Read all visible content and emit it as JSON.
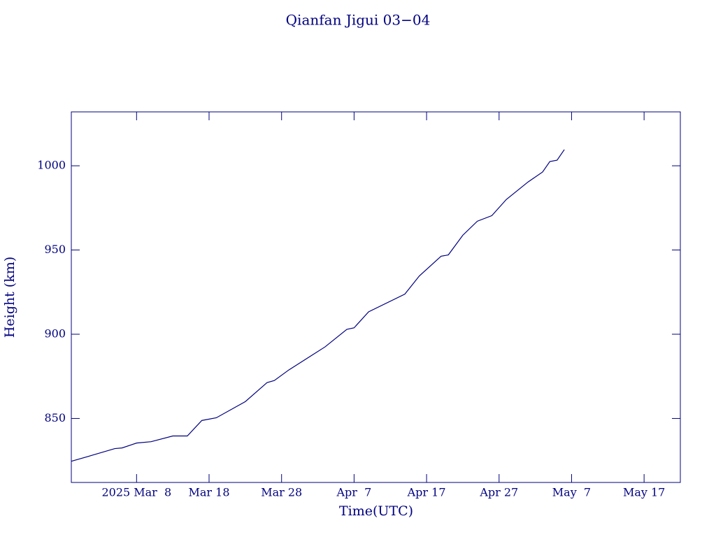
{
  "chart_data": {
    "type": "line",
    "title": "Qianfan Jigui 03−04",
    "x_label": "Time(UTC)",
    "y_label": "Height (km)",
    "x": [
      "2025-02-27",
      "2025-03-02",
      "2025-03-05",
      "2025-03-06",
      "2025-03-08",
      "2025-03-10",
      "2025-03-13",
      "2025-03-15",
      "2025-03-17",
      "2025-03-19",
      "2025-03-23",
      "2025-03-26",
      "2025-03-27",
      "2025-03-29",
      "2025-04-03",
      "2025-04-06",
      "2025-04-07",
      "2025-04-09",
      "2025-04-14",
      "2025-04-16",
      "2025-04-19",
      "2025-04-20",
      "2025-04-22",
      "2025-04-24",
      "2025-04-26",
      "2025-04-28",
      "2025-05-01",
      "2025-05-03",
      "2025-05-04",
      "2025-05-05",
      "2025-05-06"
    ],
    "series": [
      {
        "name": "Height",
        "color": "#000080",
        "values": [
          824.6,
          828.3,
          832.1,
          832.5,
          835.4,
          836.2,
          839.6,
          839.6,
          848.8,
          850.4,
          860,
          871.3,
          872.5,
          878.8,
          892.5,
          902.9,
          903.8,
          913.3,
          923.8,
          934.6,
          946.3,
          947.1,
          958.8,
          967.1,
          970.4,
          980,
          990.4,
          996.3,
          1002.5,
          1003.3,
          1009.6
        ]
      }
    ],
    "xlim": [
      "2025-02-27",
      "2025-05-22"
    ],
    "xticks": [
      {
        "value": "2025-03-08",
        "label": "2025 Mar  8"
      },
      {
        "value": "2025-03-18",
        "label": "Mar 18"
      },
      {
        "value": "2025-03-28",
        "label": "Mar 28"
      },
      {
        "value": "2025-04-07",
        "label": "Apr  7"
      },
      {
        "value": "2025-04-17",
        "label": "Apr 17"
      },
      {
        "value": "2025-04-27",
        "label": "Apr 27"
      },
      {
        "value": "2025-05-07",
        "label": "May  7"
      },
      {
        "value": "2025-05-17",
        "label": "May 17"
      }
    ],
    "ylim": [
      812,
      1032
    ],
    "yticks": [
      850,
      900,
      950,
      1000
    ],
    "axis_color": "#000080"
  }
}
